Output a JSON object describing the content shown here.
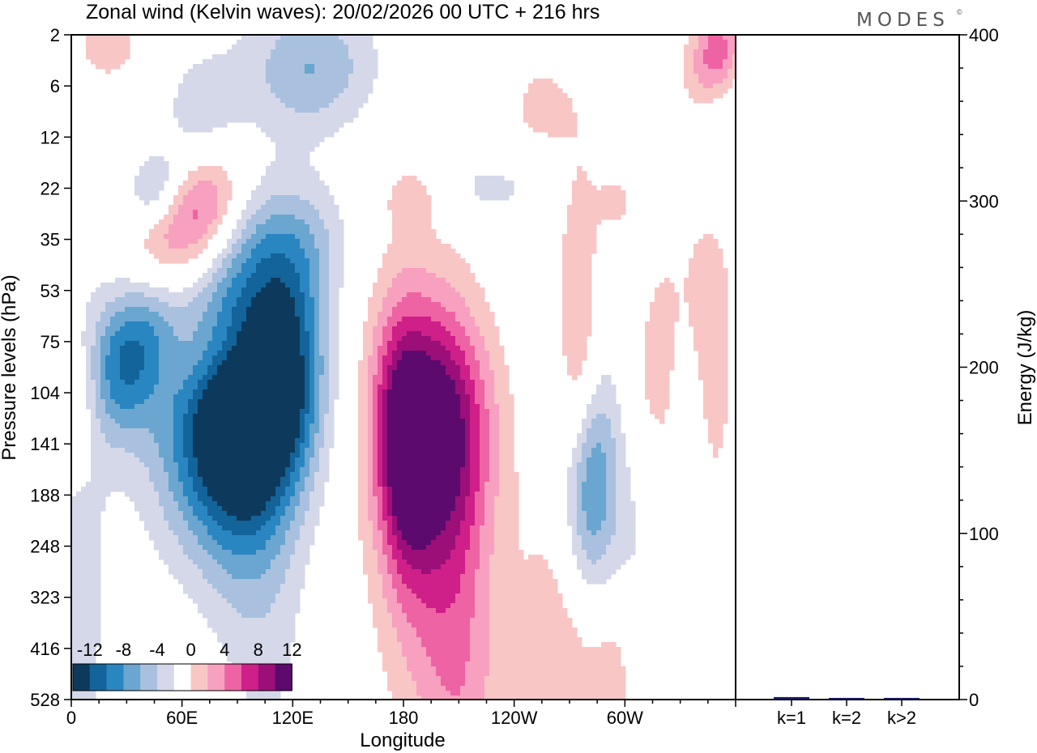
{
  "brand": "MODES",
  "brand_mark": "©",
  "chart_data": [
    {
      "type": "heatmap",
      "title": "Zonal wind (Kelvin waves):  20/02/2026  00 UTC  + 216 hrs",
      "xlabel": "Longitude",
      "ylabel": "Pressure levels (hPa)",
      "x_ticks": [
        "0",
        "60E",
        "120E",
        "180",
        "120W",
        "60W"
      ],
      "x_range_deg": [
        0,
        360
      ],
      "y_ticks": [
        "2",
        "6",
        "12",
        "22",
        "35",
        "53",
        "75",
        "104",
        "141",
        "188",
        "248",
        "323",
        "416",
        "528"
      ],
      "legend_labels": [
        "-12",
        "-8",
        "-4",
        "0",
        "4",
        "8",
        "12"
      ],
      "color_levels": [
        -14,
        -12,
        -10,
        -8,
        -6,
        -4,
        -2,
        2,
        4,
        6,
        8,
        10,
        12,
        14
      ],
      "colors": [
        "#0d3a5c",
        "#13649a",
        "#2a86c0",
        "#6aa6d0",
        "#a9c1de",
        "#d4d8e9",
        "#ffffff",
        "#f9c6c6",
        "#f8a0bf",
        "#ee63a3",
        "#cf1f88",
        "#9c0f78",
        "#5c0a6e"
      ],
      "features": [
        {
          "lon": 100,
          "lev": 103,
          "amp": -13,
          "sx": 22,
          "sy": 2.0,
          "tilt": -0.35
        },
        {
          "lon": 75,
          "lev": 128,
          "amp": -8,
          "sx": 25,
          "sy": 1.6,
          "tilt": -0.25
        },
        {
          "lon": 118,
          "lev": 88,
          "amp": -6,
          "sx": 14,
          "sy": 1.5,
          "tilt": -0.2
        },
        {
          "lon": 100,
          "lev": 250,
          "amp": -3,
          "sx": 18,
          "sy": 3.5,
          "tilt": 0.3
        },
        {
          "lon": 5,
          "lev": 320,
          "amp": -2.8,
          "sx": 12,
          "sy": 4,
          "tilt": 0.0
        },
        {
          "lon": 30,
          "lev": 87,
          "amp": -9,
          "sx": 15,
          "sy": 1.0,
          "tilt": -0.5
        },
        {
          "lon": 50,
          "lev": 60,
          "amp": -4.5,
          "sx": 20,
          "sy": 0.8,
          "tilt": -0.6
        },
        {
          "lon": 45,
          "lev": 22,
          "amp": -5,
          "sx": 10,
          "sy": 0.5,
          "tilt": -0.5
        },
        {
          "lon": 70,
          "lev": 8,
          "amp": -3,
          "sx": 15,
          "sy": 0.8,
          "tilt": -0.4
        },
        {
          "lon": 130,
          "lev": 4,
          "amp": -6,
          "sx": 25,
          "sy": 0.9,
          "tilt": 0.0
        },
        {
          "lon": 120,
          "lev": 35,
          "amp": -3,
          "sx": 25,
          "sy": 0.8,
          "tilt": -0.3
        },
        {
          "lon": 280,
          "lev": 182,
          "amp": -9,
          "sx": 10,
          "sy": 1.5,
          "tilt": 0.0
        },
        {
          "lon": 300,
          "lev": 240,
          "amp": -3,
          "sx": 14,
          "sy": 2.5,
          "tilt": 0.2
        },
        {
          "lon": 345,
          "lev": 15,
          "amp": -3,
          "sx": 10,
          "sy": 1.5,
          "tilt": -0.6
        },
        {
          "lon": 225,
          "lev": 22,
          "amp": -2.5,
          "sx": 25,
          "sy": 0.5,
          "tilt": 0.0
        },
        {
          "lon": 330,
          "lev": 125,
          "amp": -2.8,
          "sx": 8,
          "sy": 2.0,
          "tilt": 0.0
        },
        {
          "lon": 362,
          "lev": 170,
          "amp": -3,
          "sx": 8,
          "sy": 3.5,
          "tilt": 0.0
        },
        {
          "lon": 180,
          "lev": 145,
          "amp": 8,
          "sx": 10,
          "sy": 1.7,
          "tilt": 0.1
        },
        {
          "lon": 200,
          "lev": 125,
          "amp": 10,
          "sx": 20,
          "sy": 1.6,
          "tilt": 0.0
        },
        {
          "lon": 190,
          "lev": 210,
          "amp": 5,
          "sx": 22,
          "sy": 3.5,
          "tilt": 0.3
        },
        {
          "lon": 210,
          "lev": 400,
          "amp": 3.5,
          "sx": 15,
          "sy": 3.5,
          "tilt": 0.2
        },
        {
          "lon": 270,
          "lev": 420,
          "amp": 3.5,
          "sx": 22,
          "sy": 2.5,
          "tilt": 0.0
        },
        {
          "lon": 295,
          "lev": 520,
          "amp": 3,
          "sx": 8,
          "sy": 1.5,
          "tilt": 0.0
        },
        {
          "lon": 55,
          "lev": 40,
          "amp": 6,
          "sx": 18,
          "sy": 1.0,
          "tilt": -0.6
        },
        {
          "lon": 75,
          "lev": 25,
          "amp": 5,
          "sx": 14,
          "sy": 0.7,
          "tilt": -0.5
        },
        {
          "lon": 85,
          "lev": 80,
          "amp": 4.5,
          "sx": 25,
          "sy": 0.7,
          "tilt": -0.15
        },
        {
          "lon": 20,
          "lev": 2.5,
          "amp": 3.5,
          "sx": 12,
          "sy": 0.5,
          "tilt": 0.0
        },
        {
          "lon": 350,
          "lev": 3,
          "amp": 8,
          "sx": 10,
          "sy": 0.7,
          "tilt": -0.5
        },
        {
          "lon": 340,
          "lev": 40,
          "amp": 3.5,
          "sx": 12,
          "sy": 2.0,
          "tilt": 0.0
        },
        {
          "lon": 275,
          "lev": 45,
          "amp": 3.5,
          "sx": 8,
          "sy": 2.0,
          "tilt": 0.0
        },
        {
          "lon": 355,
          "lev": 110,
          "amp": 3.5,
          "sx": 10,
          "sy": 2.0,
          "tilt": 0.0
        },
        {
          "lon": 275,
          "lev": 120,
          "amp": 3,
          "sx": 7,
          "sy": 1.5,
          "tilt": 0.0
        },
        {
          "lon": 315,
          "lev": 90,
          "amp": 3,
          "sx": 10,
          "sy": 1.5,
          "tilt": -0.3
        },
        {
          "lon": 255,
          "lev": 8,
          "amp": 3,
          "sx": 12,
          "sy": 0.6,
          "tilt": 0.0
        },
        {
          "lon": 5,
          "lev": 110,
          "amp": 3.5,
          "sx": 8,
          "sy": 1.0,
          "tilt": 0.0
        },
        {
          "lon": 325,
          "lev": 210,
          "amp": 3,
          "sx": 6,
          "sy": 2.5,
          "tilt": 0.0
        },
        {
          "lon": 185,
          "lev": 24,
          "amp": 2.8,
          "sx": 10,
          "sy": 0.4,
          "tilt": 0.0
        },
        {
          "lon": 295,
          "lev": 25,
          "amp": 2.8,
          "sx": 8,
          "sy": 0.4,
          "tilt": 0.0
        }
      ]
    },
    {
      "type": "bar",
      "categories": [
        "k=1",
        "k=2",
        "k>2"
      ],
      "values": [
        1.5,
        1.0,
        1.0
      ],
      "ylabel": "Energy (J/kg)",
      "ylim": [
        0,
        400
      ],
      "y_ticks": [
        "0",
        "100",
        "200",
        "300",
        "400"
      ],
      "bar_color": "#1a1a5e"
    }
  ]
}
